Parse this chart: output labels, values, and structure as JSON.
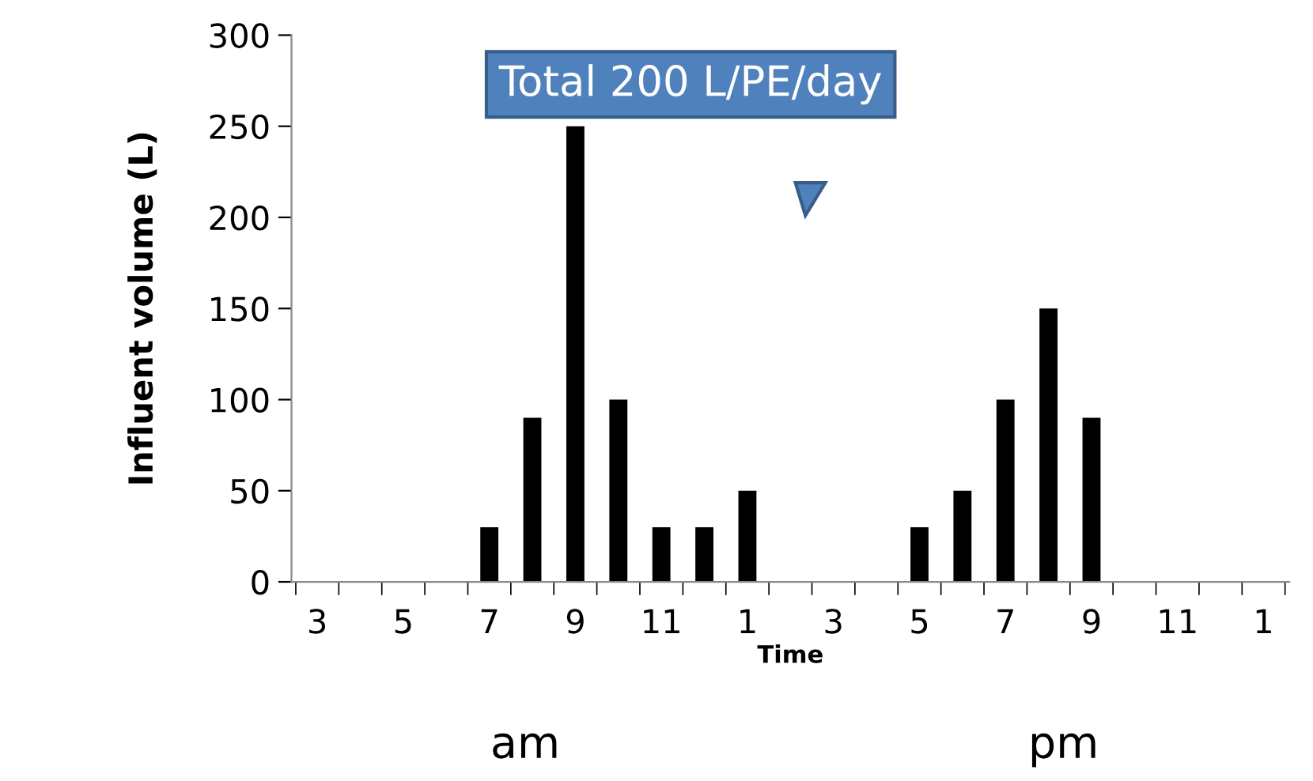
{
  "chart_data": {
    "type": "bar",
    "xlabel": "Time",
    "ylabel": "Influent volume (L)",
    "categories": [
      "3",
      null,
      "5",
      null,
      "7",
      null,
      "9",
      null,
      "11",
      null,
      "1",
      null,
      "3",
      null,
      "5",
      null,
      "7",
      null,
      "9",
      null,
      "11",
      null,
      "1"
    ],
    "values": [
      0,
      0,
      0,
      0,
      30,
      90,
      250,
      100,
      30,
      30,
      50,
      0,
      0,
      0,
      30,
      50,
      100,
      150,
      90,
      0,
      0,
      0,
      0
    ],
    "color": "#000000",
    "ylim": [
      0,
      300
    ],
    "yticks": [
      0,
      50,
      100,
      150,
      200,
      250,
      300
    ],
    "grid": false,
    "annotations": [
      "Total 200 L/PE/day",
      "am",
      "pm"
    ]
  }
}
